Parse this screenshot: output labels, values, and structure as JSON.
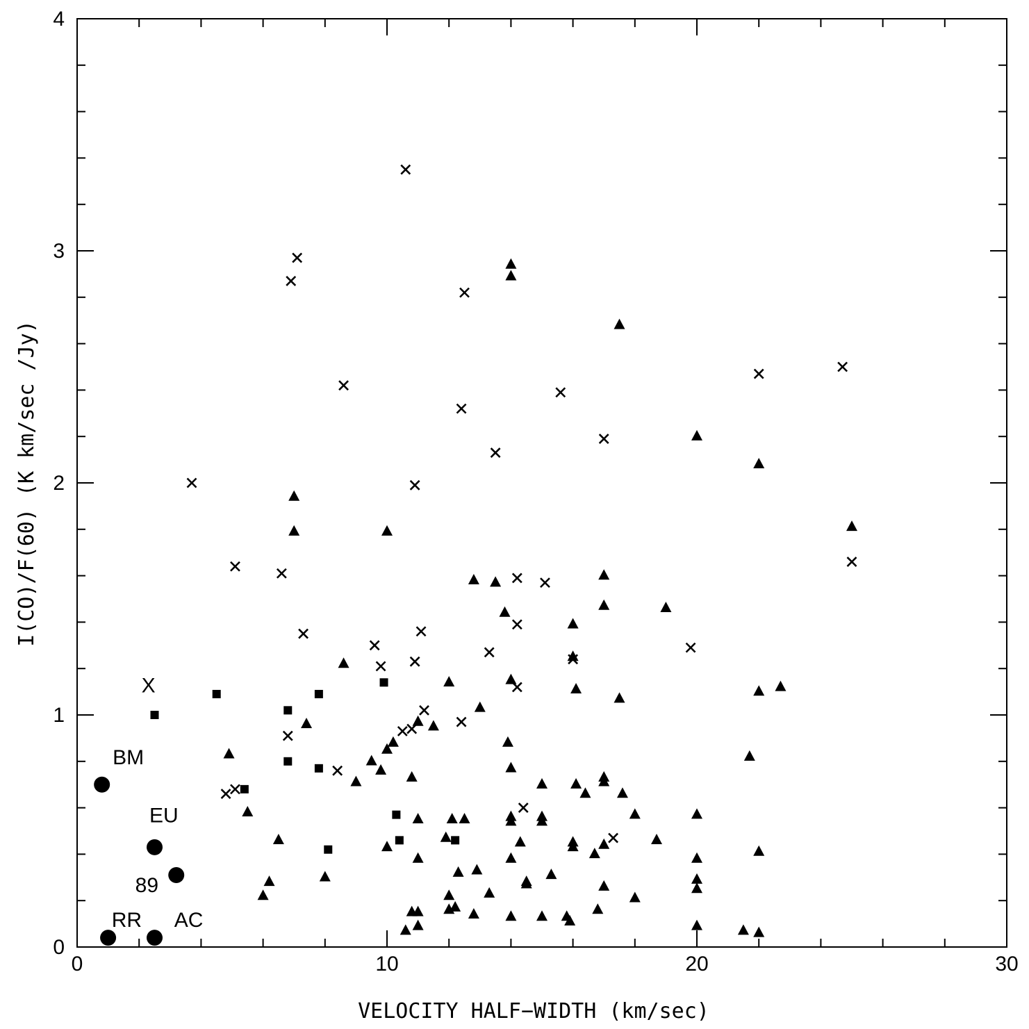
{
  "chart_data": {
    "type": "scatter",
    "title": "",
    "xlabel": "VELOCITY HALF−WIDTH (km/sec)",
    "ylabel": "I(CO)/F(60) (K km/sec /Jy)",
    "xlim": [
      0,
      30
    ],
    "ylim": [
      0,
      4
    ],
    "x_tick_labels": [
      "0",
      "10",
      "20",
      "30"
    ],
    "y_tick_labels": [
      "0",
      "1",
      "2",
      "3",
      "4"
    ],
    "grid": false,
    "series": [
      {
        "marker": "cross",
        "points": [
          [
            10.6,
            3.35
          ],
          [
            7.1,
            2.97
          ],
          [
            6.9,
            2.87
          ],
          [
            12.5,
            2.82
          ],
          [
            8.6,
            2.42
          ],
          [
            12.4,
            2.32
          ],
          [
            15.6,
            2.39
          ],
          [
            13.5,
            2.13
          ],
          [
            17.0,
            2.19
          ],
          [
            22.0,
            2.47
          ],
          [
            24.7,
            2.5
          ],
          [
            3.7,
            2.0
          ],
          [
            10.9,
            1.99
          ],
          [
            5.1,
            1.64
          ],
          [
            6.6,
            1.61
          ],
          [
            14.2,
            1.59
          ],
          [
            15.1,
            1.57
          ],
          [
            25.0,
            1.66
          ],
          [
            7.3,
            1.35
          ],
          [
            11.1,
            1.36
          ],
          [
            14.2,
            1.39
          ],
          [
            9.6,
            1.3
          ],
          [
            13.3,
            1.27
          ],
          [
            19.8,
            1.29
          ],
          [
            9.8,
            1.21
          ],
          [
            10.9,
            1.23
          ],
          [
            16.0,
            1.24
          ],
          [
            14.2,
            1.12
          ],
          [
            11.2,
            1.02
          ],
          [
            12.4,
            0.97
          ],
          [
            10.5,
            0.93
          ],
          [
            10.8,
            0.94
          ],
          [
            6.8,
            0.91
          ],
          [
            8.4,
            0.76
          ],
          [
            5.1,
            0.68
          ],
          [
            4.8,
            0.66
          ],
          [
            14.4,
            0.6
          ],
          [
            17.3,
            0.47
          ]
        ]
      },
      {
        "marker": "triangle",
        "points": [
          [
            14.0,
            2.94
          ],
          [
            14.0,
            2.89
          ],
          [
            17.5,
            2.68
          ],
          [
            20.0,
            2.2
          ],
          [
            22.0,
            2.08
          ],
          [
            7.0,
            1.94
          ],
          [
            7.0,
            1.79
          ],
          [
            10.0,
            1.79
          ],
          [
            25.0,
            1.81
          ],
          [
            12.8,
            1.58
          ],
          [
            13.5,
            1.57
          ],
          [
            17.0,
            1.6
          ],
          [
            13.8,
            1.44
          ],
          [
            17.0,
            1.47
          ],
          [
            19.0,
            1.46
          ],
          [
            16.0,
            1.39
          ],
          [
            16.0,
            1.25
          ],
          [
            8.6,
            1.22
          ],
          [
            12.0,
            1.14
          ],
          [
            14.0,
            1.15
          ],
          [
            16.1,
            1.11
          ],
          [
            17.5,
            1.07
          ],
          [
            22.0,
            1.1
          ],
          [
            22.7,
            1.12
          ],
          [
            13.0,
            1.03
          ],
          [
            11.0,
            0.97
          ],
          [
            11.5,
            0.95
          ],
          [
            7.4,
            0.96
          ],
          [
            10.2,
            0.88
          ],
          [
            10.0,
            0.85
          ],
          [
            4.9,
            0.83
          ],
          [
            13.9,
            0.88
          ],
          [
            21.7,
            0.82
          ],
          [
            9.5,
            0.8
          ],
          [
            9.8,
            0.76
          ],
          [
            14.0,
            0.77
          ],
          [
            10.8,
            0.73
          ],
          [
            9.0,
            0.71
          ],
          [
            15.0,
            0.7
          ],
          [
            16.1,
            0.7
          ],
          [
            16.4,
            0.66
          ],
          [
            17.0,
            0.73
          ],
          [
            17.0,
            0.71
          ],
          [
            17.6,
            0.66
          ],
          [
            5.5,
            0.58
          ],
          [
            11.0,
            0.55
          ],
          [
            12.1,
            0.55
          ],
          [
            12.5,
            0.55
          ],
          [
            14.0,
            0.56
          ],
          [
            14.0,
            0.54
          ],
          [
            15.0,
            0.56
          ],
          [
            15.0,
            0.54
          ],
          [
            18.0,
            0.57
          ],
          [
            20.0,
            0.57
          ],
          [
            6.5,
            0.46
          ],
          [
            11.9,
            0.47
          ],
          [
            14.3,
            0.45
          ],
          [
            16.0,
            0.45
          ],
          [
            16.0,
            0.43
          ],
          [
            17.0,
            0.44
          ],
          [
            18.7,
            0.46
          ],
          [
            22.0,
            0.41
          ],
          [
            10.0,
            0.43
          ],
          [
            11.0,
            0.38
          ],
          [
            14.0,
            0.38
          ],
          [
            16.7,
            0.4
          ],
          [
            20.0,
            0.38
          ],
          [
            12.3,
            0.32
          ],
          [
            12.9,
            0.33
          ],
          [
            15.3,
            0.31
          ],
          [
            6.2,
            0.28
          ],
          [
            8.0,
            0.3
          ],
          [
            14.5,
            0.28
          ],
          [
            14.5,
            0.27
          ],
          [
            17.0,
            0.26
          ],
          [
            20.0,
            0.29
          ],
          [
            20.0,
            0.25
          ],
          [
            6.0,
            0.22
          ],
          [
            12.0,
            0.22
          ],
          [
            13.3,
            0.23
          ],
          [
            18.0,
            0.21
          ],
          [
            10.8,
            0.15
          ],
          [
            11.0,
            0.15
          ],
          [
            12.0,
            0.16
          ],
          [
            12.2,
            0.17
          ],
          [
            12.8,
            0.14
          ],
          [
            14.0,
            0.13
          ],
          [
            15.0,
            0.13
          ],
          [
            15.8,
            0.13
          ],
          [
            15.9,
            0.11
          ],
          [
            16.8,
            0.16
          ],
          [
            11.0,
            0.09
          ],
          [
            10.6,
            0.07
          ],
          [
            20.0,
            0.09
          ],
          [
            21.5,
            0.07
          ],
          [
            22.0,
            0.06
          ]
        ]
      },
      {
        "marker": "square",
        "points": [
          [
            4.5,
            1.09
          ],
          [
            2.5,
            1.0
          ],
          [
            6.8,
            1.02
          ],
          [
            7.8,
            1.09
          ],
          [
            9.9,
            1.14
          ],
          [
            6.8,
            0.8
          ],
          [
            7.8,
            0.77
          ],
          [
            5.4,
            0.68
          ],
          [
            10.3,
            0.57
          ],
          [
            10.4,
            0.46
          ],
          [
            12.2,
            0.46
          ],
          [
            8.1,
            0.42
          ]
        ]
      },
      {
        "marker": "circle",
        "points": [
          [
            0.8,
            0.7
          ],
          [
            2.5,
            0.43
          ],
          [
            3.2,
            0.31
          ],
          [
            1.0,
            0.04
          ],
          [
            2.5,
            0.04
          ]
        ]
      }
    ],
    "annotations": [
      {
        "text": "X",
        "x": 2.3,
        "y": 1.13
      },
      {
        "text": "BM",
        "x": 1.65,
        "y": 0.82
      },
      {
        "text": "EU",
        "x": 2.8,
        "y": 0.57
      },
      {
        "text": "89",
        "x": 2.25,
        "y": 0.27
      },
      {
        "text": "RR",
        "x": 1.6,
        "y": 0.12
      },
      {
        "text": "AC",
        "x": 3.6,
        "y": 0.12
      }
    ]
  }
}
